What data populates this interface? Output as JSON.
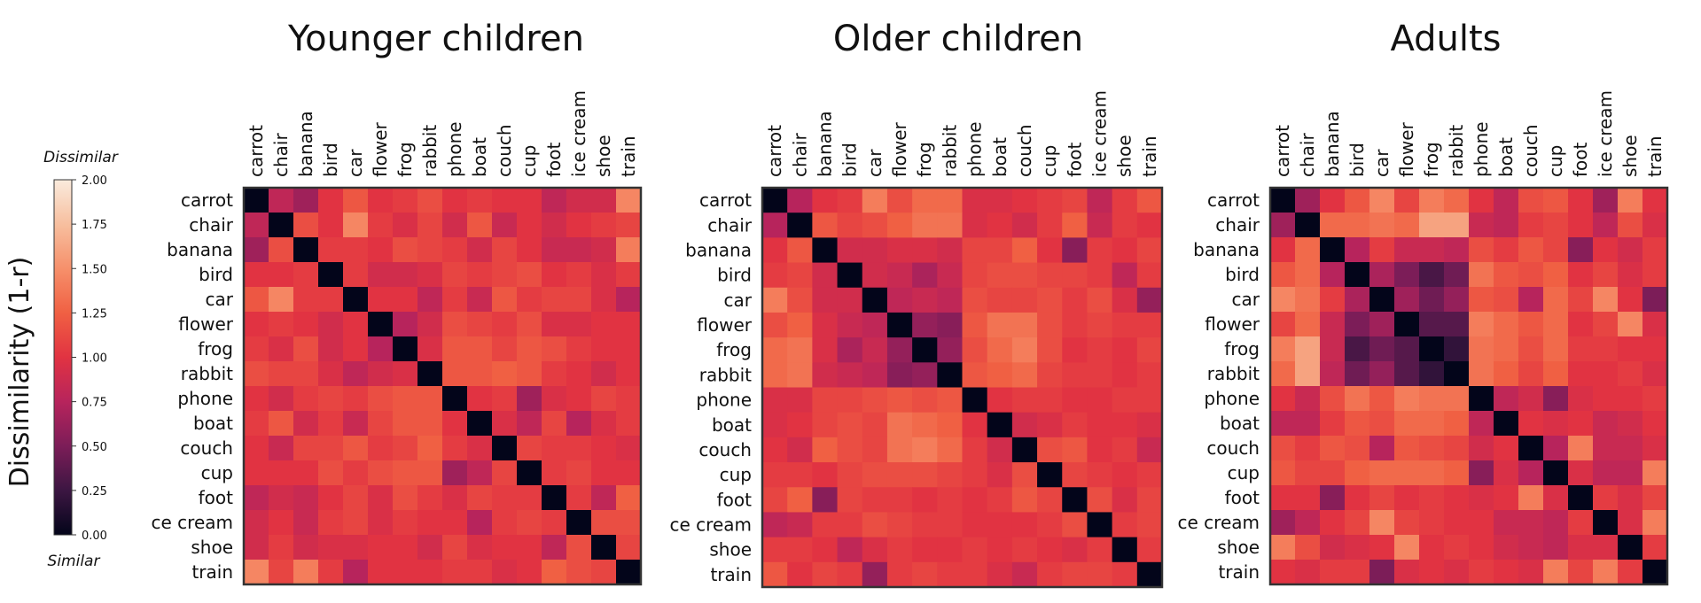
{
  "colorbar": {
    "label": "Dissimilarity (1-r)",
    "top_label": "Dissimilar",
    "bottom_label": "Similar",
    "ticks": [
      "0.00",
      "0.25",
      "0.50",
      "0.75",
      "1.00",
      "1.25",
      "1.50",
      "1.75",
      "2.00"
    ],
    "range": [
      0,
      2
    ],
    "colors": [
      "#03051a",
      "#3c1642",
      "#7c1d58",
      "#b7245c",
      "#e13342",
      "#f06043",
      "#f6906b",
      "#f7bf9f",
      "#faebdd"
    ]
  },
  "chart_data": [
    {
      "type": "heatmap",
      "title": "Younger children",
      "columns": [
        "carrot",
        "chair",
        "banana",
        "bird",
        "car",
        "flower",
        "frog",
        "rabbit",
        "phone",
        "boat",
        "couch",
        "cup",
        "foot",
        "ice cream",
        "shoe",
        "train"
      ],
      "rows": [
        "carrot",
        "chair",
        "banana",
        "bird",
        "car",
        "flower",
        "frog",
        "rabbit",
        "phone",
        "boat",
        "couch",
        "cup",
        "foot",
        "ce cream",
        "shoe",
        "train"
      ],
      "scale": [
        0,
        2
      ],
      "values": [
        [
          0.0,
          0.8,
          0.65,
          1.0,
          1.2,
          1.0,
          1.05,
          1.15,
          1.0,
          1.05,
          1.0,
          1.0,
          0.8,
          0.9,
          0.9,
          1.45
        ],
        [
          0.8,
          0.0,
          1.15,
          1.0,
          1.45,
          1.05,
          0.95,
          1.1,
          0.9,
          1.2,
          0.85,
          1.0,
          0.9,
          1.0,
          1.05,
          1.1
        ],
        [
          0.65,
          1.15,
          0.0,
          1.05,
          1.05,
          1.0,
          1.15,
          1.1,
          1.05,
          0.9,
          1.1,
          1.0,
          0.85,
          0.85,
          0.9,
          1.4
        ],
        [
          1.0,
          1.0,
          1.05,
          0.0,
          1.05,
          0.9,
          0.9,
          0.95,
          1.1,
          1.05,
          1.1,
          1.15,
          1.0,
          1.05,
          0.95,
          1.05
        ],
        [
          1.2,
          1.45,
          1.05,
          1.05,
          0.0,
          1.0,
          1.0,
          0.8,
          1.05,
          0.85,
          1.2,
          1.05,
          1.1,
          1.1,
          0.95,
          0.75
        ],
        [
          1.0,
          1.05,
          1.0,
          0.9,
          1.0,
          0.0,
          0.75,
          0.9,
          1.15,
          1.1,
          1.05,
          1.15,
          0.95,
          0.95,
          1.0,
          1.0
        ],
        [
          1.05,
          0.95,
          1.15,
          0.9,
          1.0,
          0.75,
          0.0,
          0.95,
          1.2,
          1.2,
          1.1,
          1.2,
          1.15,
          1.05,
          1.0,
          1.0
        ],
        [
          1.15,
          1.1,
          1.1,
          0.95,
          0.8,
          0.9,
          0.95,
          0.0,
          1.2,
          1.2,
          1.25,
          1.2,
          1.05,
          1.0,
          0.9,
          1.0
        ],
        [
          1.0,
          0.9,
          1.05,
          1.1,
          1.05,
          1.15,
          1.2,
          1.2,
          0.0,
          1.0,
          1.05,
          0.65,
          0.95,
          1.0,
          1.1,
          1.05
        ],
        [
          1.05,
          1.2,
          0.9,
          1.05,
          0.85,
          1.1,
          1.2,
          1.2,
          1.0,
          0.0,
          0.95,
          0.8,
          1.1,
          0.75,
          0.95,
          1.05
        ],
        [
          1.0,
          0.85,
          1.1,
          1.1,
          1.2,
          1.05,
          1.1,
          1.25,
          1.05,
          0.95,
          0.0,
          1.1,
          1.05,
          1.05,
          1.0,
          0.95
        ],
        [
          1.0,
          1.0,
          1.0,
          1.15,
          1.05,
          1.15,
          1.2,
          1.2,
          0.65,
          0.8,
          1.1,
          0.0,
          1.05,
          1.1,
          1.0,
          1.0
        ],
        [
          0.8,
          0.9,
          0.85,
          1.0,
          1.1,
          0.95,
          1.15,
          1.05,
          0.95,
          1.1,
          1.05,
          1.05,
          0.0,
          1.05,
          0.8,
          1.25
        ],
        [
          0.9,
          1.0,
          0.85,
          1.05,
          1.1,
          0.95,
          1.05,
          1.0,
          1.0,
          0.75,
          1.05,
          1.1,
          1.05,
          0.0,
          1.15,
          1.15
        ],
        [
          0.9,
          1.05,
          0.9,
          0.95,
          0.95,
          1.0,
          1.0,
          0.9,
          1.1,
          0.95,
          1.0,
          1.0,
          0.8,
          1.15,
          0.0,
          1.1
        ],
        [
          1.45,
          1.1,
          1.4,
          1.05,
          0.75,
          1.0,
          1.0,
          1.0,
          1.05,
          1.05,
          0.95,
          1.0,
          1.25,
          1.15,
          1.1,
          0.0
        ]
      ]
    },
    {
      "type": "heatmap",
      "title": "Older children",
      "columns": [
        "carrot",
        "chair",
        "banana",
        "bird",
        "car",
        "flower",
        "frog",
        "rabbit",
        "phone",
        "boat",
        "couch",
        "cup",
        "foot",
        "ice cream",
        "shoe",
        "train"
      ],
      "rows": [
        "carrot",
        "chair",
        "banana",
        "bird",
        "car",
        "flower",
        "frog",
        "rabbit",
        "phone",
        "boat",
        "couch",
        "cup",
        "foot",
        "ce cream",
        "shoe",
        "train"
      ],
      "scale": [
        0,
        2
      ],
      "values": [
        [
          0.0,
          0.75,
          1.0,
          1.05,
          1.4,
          1.15,
          1.3,
          1.3,
          0.95,
          0.95,
          1.0,
          1.05,
          1.1,
          0.8,
          1.05,
          1.2
        ],
        [
          0.75,
          0.0,
          1.2,
          1.1,
          1.15,
          1.25,
          1.35,
          1.35,
          0.95,
          1.0,
          0.9,
          1.05,
          1.25,
          0.85,
          1.05,
          1.0
        ],
        [
          1.0,
          1.2,
          0.0,
          0.9,
          0.9,
          0.95,
          0.95,
          0.9,
          1.1,
          1.1,
          1.25,
          1.0,
          0.55,
          1.05,
          1.0,
          1.1
        ],
        [
          1.05,
          1.1,
          0.9,
          0.0,
          0.9,
          0.85,
          0.7,
          0.85,
          1.1,
          1.15,
          1.15,
          1.1,
          1.1,
          1.05,
          0.8,
          1.05
        ],
        [
          1.4,
          1.15,
          0.9,
          0.9,
          0.0,
          0.8,
          0.85,
          0.8,
          1.15,
          1.1,
          1.1,
          1.15,
          1.05,
          1.15,
          0.95,
          0.6
        ],
        [
          1.15,
          1.25,
          0.95,
          0.85,
          0.8,
          0.0,
          0.6,
          0.55,
          1.2,
          1.35,
          1.35,
          1.15,
          1.05,
          1.1,
          1.05,
          1.05
        ],
        [
          1.3,
          1.35,
          0.95,
          0.7,
          0.85,
          0.6,
          0.0,
          0.6,
          1.15,
          1.3,
          1.4,
          1.15,
          1.0,
          1.05,
          1.0,
          1.1
        ],
        [
          1.3,
          1.35,
          0.9,
          0.85,
          0.8,
          0.55,
          0.6,
          0.0,
          1.2,
          1.25,
          1.3,
          1.1,
          1.05,
          1.05,
          1.0,
          1.05
        ],
        [
          0.95,
          0.95,
          1.1,
          1.1,
          1.15,
          1.2,
          1.15,
          1.2,
          0.0,
          1.0,
          1.05,
          1.05,
          1.0,
          1.0,
          1.05,
          1.05
        ],
        [
          0.95,
          1.0,
          1.1,
          1.15,
          1.1,
          1.35,
          1.3,
          1.25,
          1.0,
          0.0,
          0.9,
          0.95,
          1.05,
          1.0,
          1.0,
          0.95
        ],
        [
          1.0,
          0.9,
          1.25,
          1.15,
          1.1,
          1.35,
          1.4,
          1.3,
          1.05,
          0.9,
          0.0,
          1.15,
          1.2,
          1.0,
          1.05,
          0.85
        ],
        [
          1.05,
          1.05,
          1.0,
          1.1,
          1.15,
          1.15,
          1.15,
          1.1,
          1.05,
          0.95,
          1.15,
          0.0,
          1.1,
          1.05,
          1.0,
          1.05
        ],
        [
          1.1,
          1.25,
          0.55,
          1.1,
          1.05,
          1.05,
          1.0,
          1.05,
          1.0,
          1.05,
          1.2,
          1.1,
          0.0,
          1.15,
          0.95,
          1.1
        ],
        [
          0.8,
          0.85,
          1.05,
          1.05,
          1.15,
          1.1,
          1.05,
          1.05,
          1.0,
          1.0,
          1.0,
          1.05,
          1.15,
          0.0,
          1.05,
          1.1
        ],
        [
          1.05,
          1.05,
          1.0,
          0.8,
          0.95,
          1.05,
          1.0,
          1.0,
          1.05,
          1.0,
          1.05,
          1.0,
          0.95,
          1.05,
          0.0,
          1.05
        ],
        [
          1.2,
          1.0,
          1.1,
          1.05,
          0.6,
          1.05,
          1.1,
          1.05,
          1.05,
          0.95,
          0.85,
          1.05,
          1.1,
          1.1,
          1.05,
          0.0
        ]
      ]
    },
    {
      "type": "heatmap",
      "title": "Adults",
      "columns": [
        "carrot",
        "chair",
        "banana",
        "bird",
        "car",
        "flower",
        "frog",
        "rabbit",
        "phone",
        "boat",
        "couch",
        "cup",
        "foot",
        "ice cream",
        "shoe",
        "train"
      ],
      "rows": [
        "carrot",
        "chair",
        "banana",
        "bird",
        "car",
        "flower",
        "frog",
        "rabbit",
        "phone",
        "boat",
        "couch",
        "cup",
        "foot",
        "ce cream",
        "shoe",
        "train"
      ],
      "scale": [
        0,
        2
      ],
      "values": [
        [
          0.0,
          0.65,
          1.0,
          1.2,
          1.45,
          1.1,
          1.4,
          1.3,
          1.0,
          0.8,
          1.15,
          1.2,
          1.0,
          0.65,
          1.4,
          1.0
        ],
        [
          0.65,
          0.0,
          1.3,
          1.3,
          1.35,
          1.3,
          1.6,
          1.6,
          0.85,
          0.8,
          1.05,
          1.1,
          1.0,
          0.8,
          1.15,
          0.95
        ],
        [
          1.0,
          1.3,
          0.0,
          0.75,
          1.05,
          0.85,
          0.85,
          0.8,
          1.15,
          1.05,
          1.2,
          1.1,
          0.55,
          1.0,
          0.9,
          1.05
        ],
        [
          1.2,
          1.3,
          0.75,
          0.0,
          0.7,
          0.5,
          0.3,
          0.45,
          1.35,
          1.2,
          1.15,
          1.25,
          1.0,
          1.1,
          0.95,
          1.05
        ],
        [
          1.45,
          1.35,
          1.05,
          0.7,
          0.0,
          0.65,
          0.45,
          0.6,
          1.2,
          1.15,
          0.75,
          1.3,
          1.1,
          1.45,
          1.0,
          0.5
        ],
        [
          1.1,
          1.3,
          0.85,
          0.5,
          0.65,
          0.0,
          0.35,
          0.35,
          1.4,
          1.3,
          1.2,
          1.3,
          1.0,
          1.1,
          1.45,
          0.95
        ],
        [
          1.4,
          1.6,
          0.85,
          0.3,
          0.45,
          0.35,
          0.0,
          0.2,
          1.35,
          1.3,
          1.15,
          1.3,
          1.05,
          1.05,
          1.0,
          1.0
        ],
        [
          1.3,
          1.6,
          0.8,
          0.45,
          0.6,
          0.35,
          0.2,
          0.0,
          1.35,
          1.25,
          1.1,
          1.25,
          1.0,
          1.0,
          1.05,
          0.95
        ],
        [
          1.0,
          0.85,
          1.15,
          1.35,
          1.2,
          1.4,
          1.35,
          1.35,
          0.0,
          0.8,
          0.9,
          0.55,
          0.95,
          1.0,
          1.0,
          1.05
        ],
        [
          0.8,
          0.8,
          1.05,
          1.2,
          1.15,
          1.3,
          1.3,
          1.25,
          0.8,
          0.0,
          1.0,
          0.95,
          1.0,
          0.85,
          0.9,
          1.0
        ],
        [
          1.15,
          1.05,
          1.2,
          1.15,
          0.75,
          1.2,
          1.15,
          1.1,
          0.9,
          1.0,
          0.0,
          0.75,
          1.4,
          0.85,
          0.85,
          0.95
        ],
        [
          1.2,
          1.1,
          1.1,
          1.25,
          1.3,
          1.3,
          1.3,
          1.25,
          0.55,
          0.95,
          0.75,
          0.0,
          0.95,
          0.8,
          0.8,
          1.4
        ],
        [
          1.0,
          1.0,
          0.55,
          1.0,
          1.1,
          1.0,
          1.05,
          1.0,
          0.95,
          1.0,
          1.4,
          0.95,
          0.0,
          1.05,
          0.95,
          1.1
        ],
        [
          0.65,
          0.8,
          1.0,
          1.1,
          1.45,
          1.1,
          1.05,
          1.0,
          1.0,
          0.85,
          0.85,
          0.8,
          1.05,
          0.0,
          0.95,
          1.4
        ],
        [
          1.4,
          1.15,
          0.9,
          0.95,
          1.0,
          1.45,
          1.0,
          1.05,
          1.0,
          0.9,
          0.85,
          0.8,
          0.95,
          0.95,
          0.0,
          1.05
        ],
        [
          1.0,
          0.95,
          1.05,
          1.05,
          0.5,
          0.95,
          1.0,
          0.95,
          1.05,
          1.0,
          0.95,
          1.4,
          1.1,
          1.4,
          1.05,
          0.0
        ]
      ]
    }
  ]
}
